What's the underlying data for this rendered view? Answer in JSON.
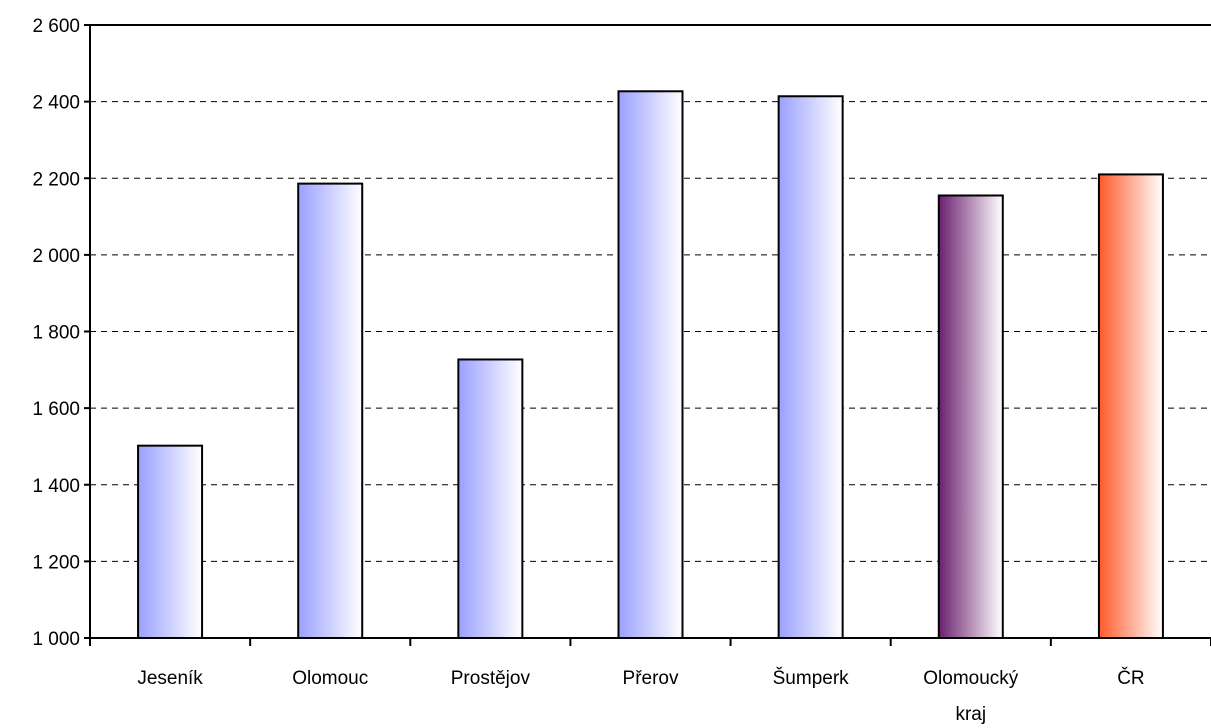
{
  "chart_data": {
    "type": "bar",
    "categories": [
      "Jeseník",
      "Olomouc",
      "Prostějov",
      "Přerov",
      "Šumperk",
      "Olomoucký kraj",
      "ČR"
    ],
    "values": [
      1502,
      2186,
      1727,
      2427,
      2414,
      2155,
      2210
    ],
    "ylim": [
      1000,
      2600
    ],
    "yticks": [
      1000,
      1200,
      1400,
      1600,
      1800,
      2000,
      2200,
      2400,
      2600
    ],
    "ytick_labels": [
      "1 000",
      "1 200",
      "1 400",
      "1 600",
      "1 800",
      "2 000",
      "2 200",
      "2 400",
      "2 600"
    ],
    "grid": "horizontal-dashed",
    "title": "",
    "xlabel": "",
    "ylabel": "",
    "bar_colors": [
      [
        "#9aa0ff",
        "#ffffff"
      ],
      [
        "#9aa0ff",
        "#ffffff"
      ],
      [
        "#9aa0ff",
        "#ffffff"
      ],
      [
        "#9aa0ff",
        "#ffffff"
      ],
      [
        "#9aa0ff",
        "#ffffff"
      ],
      [
        "#6a1f6e",
        "#ffffff"
      ],
      [
        "#ff5a2a",
        "#ffffff"
      ]
    ]
  }
}
